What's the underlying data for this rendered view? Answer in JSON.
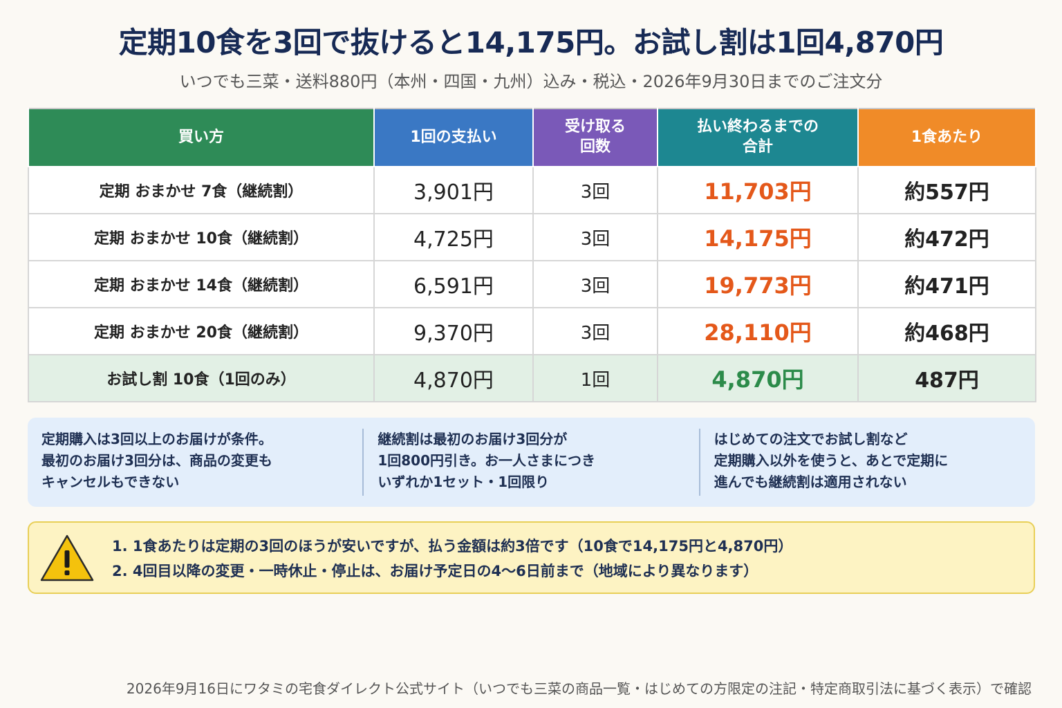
{
  "title": "定期10食を3回で抜けると14,175円。お試し割は1回4,870円",
  "subtitle": "いつでも三菜・送料880円（本州・四国・九州）込み・税込・2026年9月30日までのご注文分",
  "table": {
    "headers": [
      {
        "label": "買い方",
        "color": "#2e8b57"
      },
      {
        "label": "1回の支払い",
        "color": "#3a78c4"
      },
      {
        "label": "受け取る\n回数",
        "color": "#7a59b8"
      },
      {
        "label": "払い終わるまでの\n合計",
        "color": "#1d8791"
      },
      {
        "label": "1食あたり",
        "color": "#f08b28"
      }
    ],
    "rows": [
      {
        "method": "定期 おまかせ 7食（継続割）",
        "pay": "3,901円",
        "count": "3回",
        "total": "11,703円",
        "per": "約557円"
      },
      {
        "method": "定期 おまかせ 10食（継続割）",
        "pay": "4,725円",
        "count": "3回",
        "total": "14,175円",
        "per": "約472円"
      },
      {
        "method": "定期 おまかせ 14食（継続割）",
        "pay": "6,591円",
        "count": "3回",
        "total": "19,773円",
        "per": "約471円"
      },
      {
        "method": "定期 おまかせ 20食（継続割）",
        "pay": "9,370円",
        "count": "3回",
        "total": "28,110円",
        "per": "約468円"
      },
      {
        "method": "お試し割 10食（1回のみ）",
        "pay": "4,870円",
        "count": "1回",
        "total": "4,870円",
        "per": "487円"
      }
    ]
  },
  "notes": [
    "定期購入は3回以上のお届けが条件。\n最初のお届け3回分は、商品の変更も\nキャンセルもできない",
    "継続割は最初のお届け3回分が\n1回800円引き。お一人さまにつき\nいずれか1セット・1回限り",
    "はじめての注文でお試し割など\n定期購入以外を使うと、あとで定期に\n進んでも継続割は適用されない"
  ],
  "warning": {
    "icon": "warning-icon",
    "items": [
      "1. 1食あたりは定期の3回のほうが安いですが、払う金額は約3倍です（10食で14,175円と4,870円）",
      "2. 4回目以降の変更・一時休止・停止は、お届け予定日の4〜6日前まで（地域により異なります）"
    ]
  },
  "footer": "2026年9月16日にワタミの宅食ダイレクト公式サイト（いつでも三菜の商品一覧・はじめての方限定の注記・特定商取引法に基づく表示）で確認",
  "colors": {
    "total_regular": "#e4581a",
    "total_trial": "#2c8b4a",
    "trial_row_bg": "#e2f0e5"
  }
}
